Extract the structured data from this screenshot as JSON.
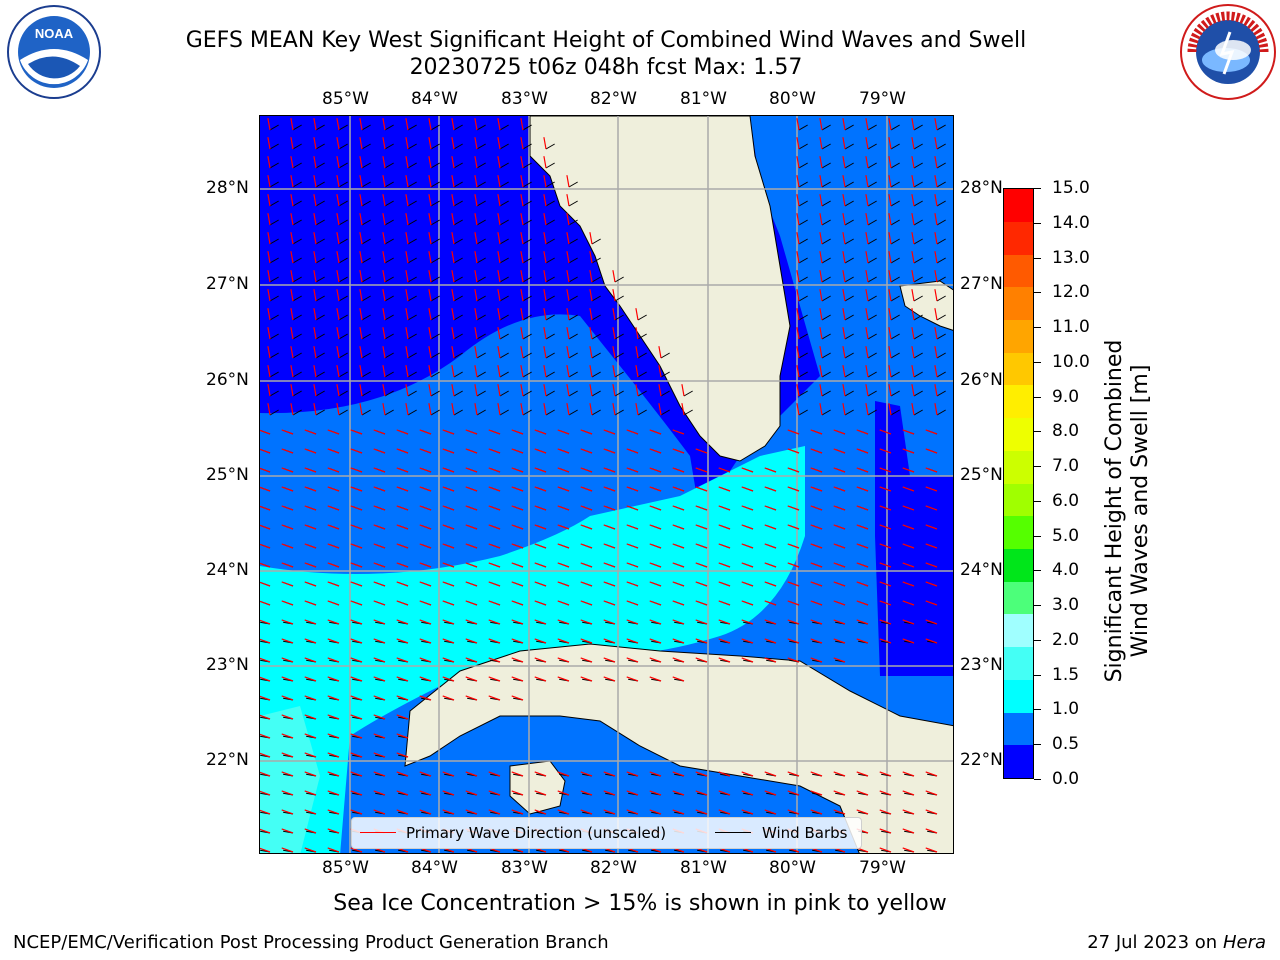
{
  "title": {
    "line1": "GEFS MEAN Key West Significant Height of Combined Wind Waves and Swell",
    "line2": "20230725 t06z 048h fcst   Max: 1.57"
  },
  "logos": {
    "left": {
      "text": "NOAA",
      "icon": "noaa-logo"
    },
    "right": {
      "text": "NATIONAL WEATHER SERVICE",
      "icon": "nws-logo"
    }
  },
  "axes": {
    "lon_labels": [
      "85°W",
      "84°W",
      "83°W",
      "82°W",
      "81°W",
      "80°W",
      "79°W"
    ],
    "lat_labels": [
      "28°N",
      "27°N",
      "26°N",
      "25°N",
      "24°N",
      "23°N",
      "22°N"
    ]
  },
  "colorbar": {
    "label_line1": "Significant Height of Combined",
    "label_line2": "Wind Waves and Swell [m]",
    "ticks": [
      "15.0",
      "14.0",
      "13.0",
      "12.0",
      "11.0",
      "10.0",
      "9.0",
      "8.0",
      "7.0",
      "6.0",
      "5.0",
      "4.0",
      "3.0",
      "2.0",
      "1.5",
      "1.0",
      "0.5",
      "0.0"
    ],
    "colors": [
      "#0000ff",
      "#0073ff",
      "#00ffff",
      "#44fff5",
      "#a0ffff",
      "#4cff7a",
      "#00e61a",
      "#55ff00",
      "#a0ff00",
      "#ccff00",
      "#eeff00",
      "#ffee00",
      "#ffc800",
      "#ffa500",
      "#ff8000",
      "#ff5a00",
      "#ff2800",
      "#ff0000"
    ]
  },
  "legend": {
    "wave_direction": "Primary Wave Direction (unscaled)",
    "wind_barbs": "Wind Barbs"
  },
  "footer": {
    "sea_ice_note": "Sea Ice Concentration > 15% is shown in pink to yellow",
    "producer": "NCEP/EMC/Verification Post Processing Product Generation Branch",
    "date": "27 Jul 2023 on ",
    "machine": "Hera"
  },
  "map_colors": {
    "band_0_0_5": "#0000ff",
    "band_0_5_1_0": "#0073ff",
    "band_1_0_1_5": "#00ffff",
    "land": "#efefdc",
    "arrow": "#ff0000"
  }
}
